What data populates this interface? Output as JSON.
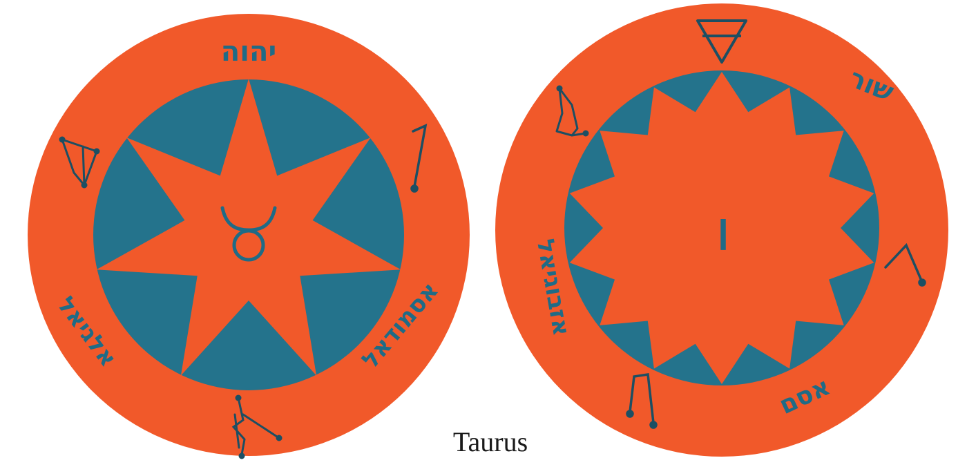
{
  "caption": "Taurus",
  "colors": {
    "disc_orange": "#f1592a",
    "inner_blue": "#24738c",
    "ink_blue": "#1f6b86",
    "ink_dark": "#1c4f63"
  },
  "left_seal": {
    "star_points": 7,
    "center_symbol": "taurus-symbol",
    "top_inscription": "יהוה",
    "lower_left_inscription": "אלגיאל",
    "lower_right_inscription": "אסמודאל",
    "sigils": [
      "left-sigil-icon",
      "right-sigil-icon",
      "bottom-sigil-icon"
    ]
  },
  "right_seal": {
    "star_points": 14,
    "center_letter": "ו",
    "top_right_inscription": "שור",
    "left_inscription": "אזבוגיאל",
    "bottom_right_inscription": "אסם",
    "symbols": [
      "earth-triangle-icon",
      "upper-left-sigil-icon",
      "right-sigil-icon",
      "bottom-sigil-icon"
    ]
  }
}
